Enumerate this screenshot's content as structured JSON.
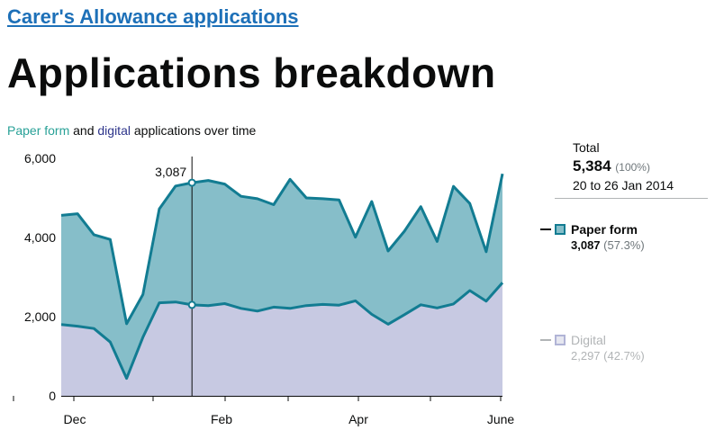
{
  "breadcrumb": "Carer's Allowance applications",
  "page_title": "Applications breakdown",
  "subtitle": {
    "paper": "Paper form",
    "and": "and",
    "digital": "digital",
    "rest": "applications over time"
  },
  "total": {
    "label": "Total",
    "value": "5,384",
    "pct": "(100%)",
    "range": "20 to 26 Jan 2014"
  },
  "legend": [
    {
      "name": "Paper form",
      "value": "3,087",
      "pct": "(57.3%)"
    },
    {
      "name": "Digital",
      "value": "2,297",
      "pct": "(42.7%)"
    }
  ],
  "colors": {
    "paper_fill": "#86bec9",
    "paper_line": "#127c92",
    "digital_fill": "#c7c9e2",
    "digital_line": "#127c92"
  },
  "chart_data": {
    "type": "area",
    "stacked": true,
    "x_tick_labels": [
      "Dec",
      "Feb",
      "Apr",
      "June"
    ],
    "y_tick_labels": [
      "0",
      "2,000",
      "4,000",
      "6,000"
    ],
    "ylim": [
      0,
      6000
    ],
    "hover": {
      "index": 8,
      "label": "3,087"
    },
    "series": [
      {
        "name": "Digital",
        "values": [
          1800,
          1760,
          1700,
          1360,
          440,
          1480,
          2350,
          2370,
          2297,
          2280,
          2330,
          2210,
          2140,
          2240,
          2210,
          2280,
          2310,
          2290,
          2400,
          2060,
          1810,
          2050,
          2300,
          2220,
          2320,
          2660,
          2390,
          2860
        ]
      },
      {
        "name": "Paper form",
        "values": [
          2760,
          2840,
          2370,
          2590,
          1380,
          1080,
          2370,
          2930,
          3087,
          3160,
          3020,
          2830,
          2840,
          2590,
          3260,
          2720,
          2670,
          2660,
          1610,
          2850,
          1850,
          2110,
          2480,
          1680,
          2970,
          2200,
          1250,
          2750
        ]
      }
    ]
  }
}
